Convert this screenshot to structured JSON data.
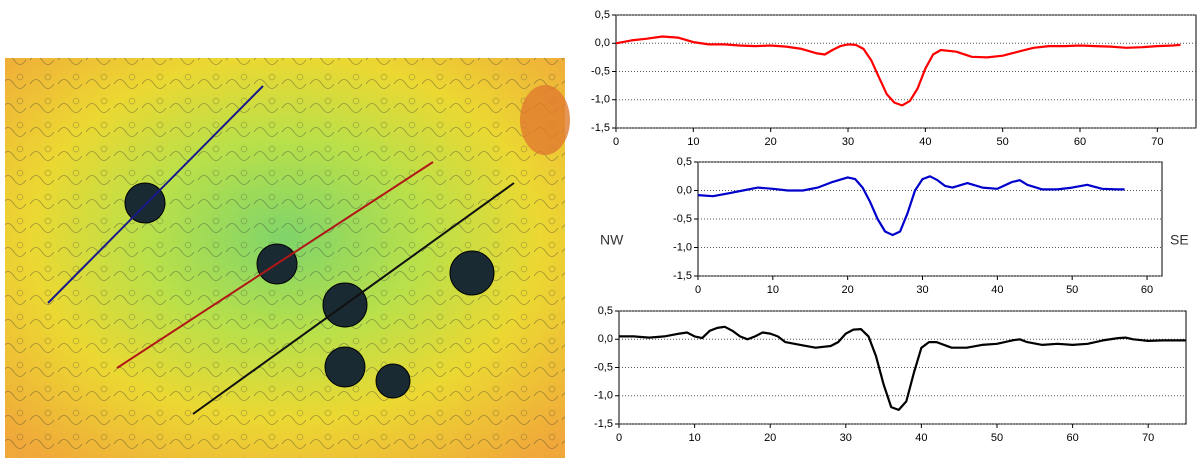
{
  "labels": {
    "left": "NW",
    "right": "SE"
  },
  "chart_data": [
    {
      "type": "line",
      "color": "#ff0000",
      "grid": true,
      "x": [
        0,
        2,
        4,
        6,
        8,
        10,
        12,
        14,
        16,
        18,
        20,
        22,
        24,
        26,
        27,
        28,
        29,
        30,
        31,
        32,
        33,
        34,
        35,
        36,
        37,
        38,
        39,
        40,
        41,
        42,
        44,
        46,
        48,
        50,
        52,
        54,
        56,
        58,
        60,
        62,
        64,
        66,
        68,
        70,
        72,
        73
      ],
      "values": [
        0,
        0.05,
        0.08,
        0.12,
        0.1,
        0.02,
        -0.02,
        -0.02,
        -0.04,
        -0.05,
        -0.04,
        -0.06,
        -0.1,
        -0.18,
        -0.2,
        -0.12,
        -0.05,
        -0.02,
        -0.03,
        -0.1,
        -0.3,
        -0.6,
        -0.9,
        -1.05,
        -1.1,
        -1.02,
        -0.8,
        -0.45,
        -0.2,
        -0.12,
        -0.15,
        -0.24,
        -0.25,
        -0.22,
        -0.15,
        -0.08,
        -0.05,
        -0.05,
        -0.04,
        -0.05,
        -0.06,
        -0.08,
        -0.07,
        -0.05,
        -0.04,
        -0.03
      ],
      "xlim": [
        0,
        75
      ],
      "xticks": [
        0,
        10,
        20,
        30,
        40,
        50,
        60,
        70
      ],
      "ylim": [
        -1.5,
        0.5
      ],
      "yticks": [
        {
          "value": -1.5,
          "label": "-1,5"
        },
        {
          "value": -1,
          "label": "-1,0"
        },
        {
          "value": -0.5,
          "label": "-0,5"
        },
        {
          "value": 0,
          "label": "0,0"
        },
        {
          "value": 0.5,
          "label": "0,5"
        }
      ]
    },
    {
      "type": "line",
      "color": "#0000cc",
      "grid": true,
      "x": [
        0,
        2,
        4,
        6,
        8,
        10,
        12,
        14,
        16,
        18,
        20,
        21,
        22,
        23,
        24,
        25,
        26,
        27,
        28,
        29,
        30,
        31,
        32,
        33,
        34,
        36,
        38,
        40,
        42,
        43,
        44,
        46,
        48,
        50,
        52,
        54,
        56,
        57
      ],
      "values": [
        -0.08,
        -0.1,
        -0.05,
        0,
        0.05,
        0.03,
        0,
        0,
        0.05,
        0.15,
        0.23,
        0.2,
        0.05,
        -0.2,
        -0.5,
        -0.72,
        -0.78,
        -0.72,
        -0.4,
        0,
        0.2,
        0.25,
        0.18,
        0.08,
        0.05,
        0.13,
        0.05,
        0.03,
        0.15,
        0.18,
        0.1,
        0.02,
        0.02,
        0.05,
        0.1,
        0.03,
        0.02,
        0.02
      ],
      "xlim": [
        0,
        62
      ],
      "xticks": [
        0,
        10,
        20,
        30,
        40,
        50,
        60
      ],
      "ylim": [
        -1.5,
        0.5
      ],
      "yticks": [
        {
          "value": -1.5,
          "label": "-1,5"
        },
        {
          "value": -1,
          "label": "-1,0"
        },
        {
          "value": -0.5,
          "label": "-0,5"
        },
        {
          "value": 0,
          "label": "0,0"
        },
        {
          "value": 0.5,
          "label": "0,5"
        }
      ]
    },
    {
      "type": "line",
      "color": "#000000",
      "grid": true,
      "x": [
        0,
        2,
        4,
        6,
        8,
        9,
        10,
        11,
        12,
        13,
        14,
        15,
        16,
        17,
        18,
        19,
        20,
        21,
        22,
        24,
        26,
        28,
        29,
        30,
        31,
        32,
        33,
        34,
        35,
        36,
        37,
        38,
        39,
        40,
        41,
        42,
        44,
        46,
        48,
        50,
        52,
        53,
        54,
        56,
        58,
        60,
        62,
        64,
        66,
        67,
        68,
        70,
        72,
        75
      ],
      "values": [
        0.05,
        0.05,
        0.03,
        0.05,
        0.1,
        0.12,
        0.05,
        0.02,
        0.15,
        0.2,
        0.22,
        0.15,
        0.05,
        0,
        0.05,
        0.12,
        0.1,
        0.05,
        -0.05,
        -0.1,
        -0.15,
        -0.12,
        -0.05,
        0.1,
        0.17,
        0.18,
        0.05,
        -0.3,
        -0.8,
        -1.2,
        -1.25,
        -1.1,
        -0.6,
        -0.15,
        -0.05,
        -0.05,
        -0.15,
        -0.15,
        -0.1,
        -0.08,
        -0.02,
        0,
        -0.05,
        -0.1,
        -0.08,
        -0.1,
        -0.08,
        -0.02,
        0.02,
        0.03,
        0,
        -0.03,
        -0.02,
        -0.02
      ],
      "xlim": [
        0,
        75
      ],
      "xticks": [
        0,
        10,
        20,
        30,
        40,
        50,
        60,
        70
      ],
      "ylim": [
        -1.5,
        0.5
      ],
      "yticks": [
        {
          "value": -1.5,
          "label": "-1,5"
        },
        {
          "value": -1,
          "label": "-1,0"
        },
        {
          "value": -0.5,
          "label": "-0,5"
        },
        {
          "value": 0,
          "label": "0,0"
        },
        {
          "value": 0.5,
          "label": "0,5"
        }
      ]
    }
  ]
}
